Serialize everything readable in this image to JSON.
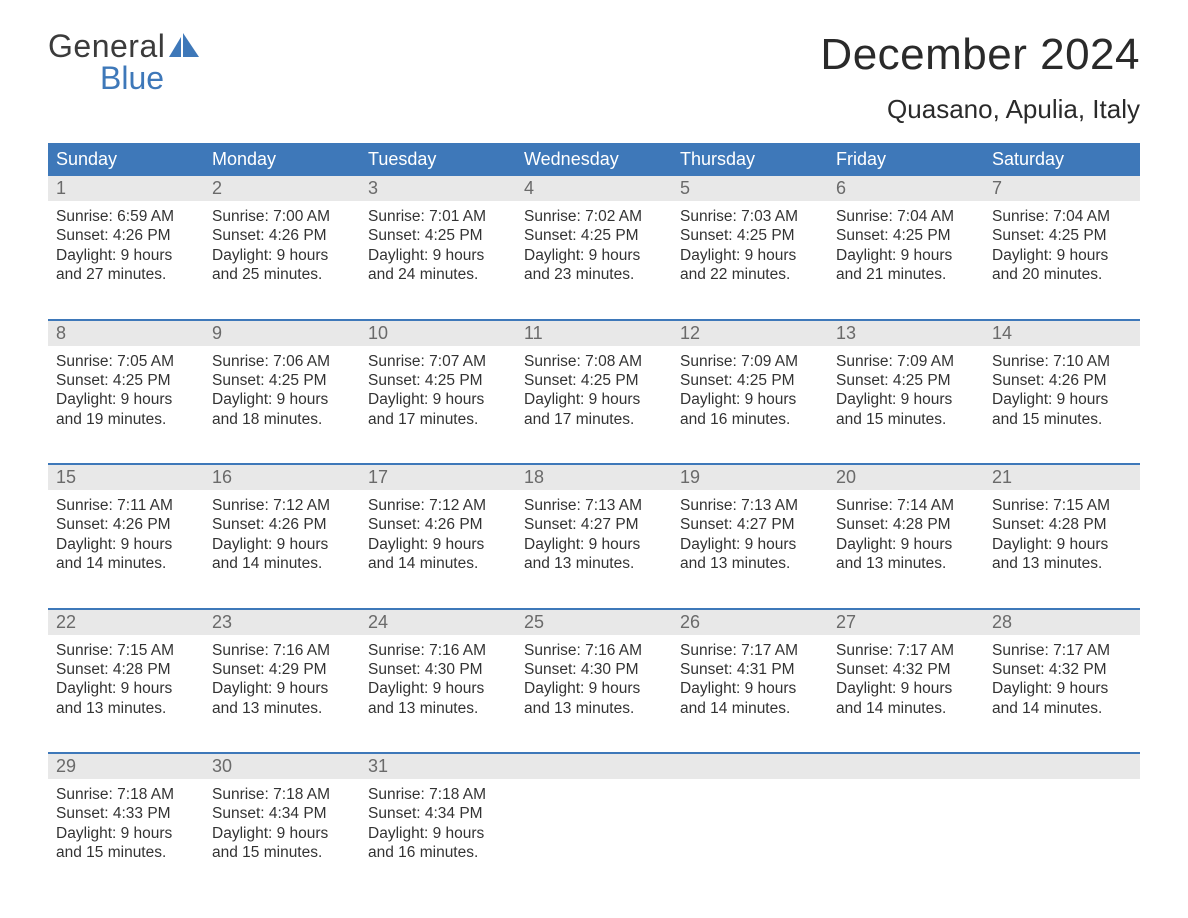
{
  "brand": {
    "line1": "General",
    "line2": "Blue"
  },
  "title": "December 2024",
  "subtitle": "Quasano, Apulia, Italy",
  "colors": {
    "header_bg": "#3e78b9",
    "header_text": "#ffffff",
    "daynum_bg": "#e8e8e8",
    "daynum_text": "#6a6a6a",
    "body_text": "#333333",
    "divider": "#3e78b9",
    "page_bg": "#ffffff",
    "logo_blue": "#3e78b9",
    "logo_dark": "#3b3b3b"
  },
  "weekdays": [
    "Sunday",
    "Monday",
    "Tuesday",
    "Wednesday",
    "Thursday",
    "Friday",
    "Saturday"
  ],
  "weeks": [
    [
      {
        "num": "1",
        "sunrise": "Sunrise: 6:59 AM",
        "sunset": "Sunset: 4:26 PM",
        "d1": "Daylight: 9 hours",
        "d2": "and 27 minutes."
      },
      {
        "num": "2",
        "sunrise": "Sunrise: 7:00 AM",
        "sunset": "Sunset: 4:26 PM",
        "d1": "Daylight: 9 hours",
        "d2": "and 25 minutes."
      },
      {
        "num": "3",
        "sunrise": "Sunrise: 7:01 AM",
        "sunset": "Sunset: 4:25 PM",
        "d1": "Daylight: 9 hours",
        "d2": "and 24 minutes."
      },
      {
        "num": "4",
        "sunrise": "Sunrise: 7:02 AM",
        "sunset": "Sunset: 4:25 PM",
        "d1": "Daylight: 9 hours",
        "d2": "and 23 minutes."
      },
      {
        "num": "5",
        "sunrise": "Sunrise: 7:03 AM",
        "sunset": "Sunset: 4:25 PM",
        "d1": "Daylight: 9 hours",
        "d2": "and 22 minutes."
      },
      {
        "num": "6",
        "sunrise": "Sunrise: 7:04 AM",
        "sunset": "Sunset: 4:25 PM",
        "d1": "Daylight: 9 hours",
        "d2": "and 21 minutes."
      },
      {
        "num": "7",
        "sunrise": "Sunrise: 7:04 AM",
        "sunset": "Sunset: 4:25 PM",
        "d1": "Daylight: 9 hours",
        "d2": "and 20 minutes."
      }
    ],
    [
      {
        "num": "8",
        "sunrise": "Sunrise: 7:05 AM",
        "sunset": "Sunset: 4:25 PM",
        "d1": "Daylight: 9 hours",
        "d2": "and 19 minutes."
      },
      {
        "num": "9",
        "sunrise": "Sunrise: 7:06 AM",
        "sunset": "Sunset: 4:25 PM",
        "d1": "Daylight: 9 hours",
        "d2": "and 18 minutes."
      },
      {
        "num": "10",
        "sunrise": "Sunrise: 7:07 AM",
        "sunset": "Sunset: 4:25 PM",
        "d1": "Daylight: 9 hours",
        "d2": "and 17 minutes."
      },
      {
        "num": "11",
        "sunrise": "Sunrise: 7:08 AM",
        "sunset": "Sunset: 4:25 PM",
        "d1": "Daylight: 9 hours",
        "d2": "and 17 minutes."
      },
      {
        "num": "12",
        "sunrise": "Sunrise: 7:09 AM",
        "sunset": "Sunset: 4:25 PM",
        "d1": "Daylight: 9 hours",
        "d2": "and 16 minutes."
      },
      {
        "num": "13",
        "sunrise": "Sunrise: 7:09 AM",
        "sunset": "Sunset: 4:25 PM",
        "d1": "Daylight: 9 hours",
        "d2": "and 15 minutes."
      },
      {
        "num": "14",
        "sunrise": "Sunrise: 7:10 AM",
        "sunset": "Sunset: 4:26 PM",
        "d1": "Daylight: 9 hours",
        "d2": "and 15 minutes."
      }
    ],
    [
      {
        "num": "15",
        "sunrise": "Sunrise: 7:11 AM",
        "sunset": "Sunset: 4:26 PM",
        "d1": "Daylight: 9 hours",
        "d2": "and 14 minutes."
      },
      {
        "num": "16",
        "sunrise": "Sunrise: 7:12 AM",
        "sunset": "Sunset: 4:26 PM",
        "d1": "Daylight: 9 hours",
        "d2": "and 14 minutes."
      },
      {
        "num": "17",
        "sunrise": "Sunrise: 7:12 AM",
        "sunset": "Sunset: 4:26 PM",
        "d1": "Daylight: 9 hours",
        "d2": "and 14 minutes."
      },
      {
        "num": "18",
        "sunrise": "Sunrise: 7:13 AM",
        "sunset": "Sunset: 4:27 PM",
        "d1": "Daylight: 9 hours",
        "d2": "and 13 minutes."
      },
      {
        "num": "19",
        "sunrise": "Sunrise: 7:13 AM",
        "sunset": "Sunset: 4:27 PM",
        "d1": "Daylight: 9 hours",
        "d2": "and 13 minutes."
      },
      {
        "num": "20",
        "sunrise": "Sunrise: 7:14 AM",
        "sunset": "Sunset: 4:28 PM",
        "d1": "Daylight: 9 hours",
        "d2": "and 13 minutes."
      },
      {
        "num": "21",
        "sunrise": "Sunrise: 7:15 AM",
        "sunset": "Sunset: 4:28 PM",
        "d1": "Daylight: 9 hours",
        "d2": "and 13 minutes."
      }
    ],
    [
      {
        "num": "22",
        "sunrise": "Sunrise: 7:15 AM",
        "sunset": "Sunset: 4:28 PM",
        "d1": "Daylight: 9 hours",
        "d2": "and 13 minutes."
      },
      {
        "num": "23",
        "sunrise": "Sunrise: 7:16 AM",
        "sunset": "Sunset: 4:29 PM",
        "d1": "Daylight: 9 hours",
        "d2": "and 13 minutes."
      },
      {
        "num": "24",
        "sunrise": "Sunrise: 7:16 AM",
        "sunset": "Sunset: 4:30 PM",
        "d1": "Daylight: 9 hours",
        "d2": "and 13 minutes."
      },
      {
        "num": "25",
        "sunrise": "Sunrise: 7:16 AM",
        "sunset": "Sunset: 4:30 PM",
        "d1": "Daylight: 9 hours",
        "d2": "and 13 minutes."
      },
      {
        "num": "26",
        "sunrise": "Sunrise: 7:17 AM",
        "sunset": "Sunset: 4:31 PM",
        "d1": "Daylight: 9 hours",
        "d2": "and 14 minutes."
      },
      {
        "num": "27",
        "sunrise": "Sunrise: 7:17 AM",
        "sunset": "Sunset: 4:32 PM",
        "d1": "Daylight: 9 hours",
        "d2": "and 14 minutes."
      },
      {
        "num": "28",
        "sunrise": "Sunrise: 7:17 AM",
        "sunset": "Sunset: 4:32 PM",
        "d1": "Daylight: 9 hours",
        "d2": "and 14 minutes."
      }
    ],
    [
      {
        "num": "29",
        "sunrise": "Sunrise: 7:18 AM",
        "sunset": "Sunset: 4:33 PM",
        "d1": "Daylight: 9 hours",
        "d2": "and 15 minutes."
      },
      {
        "num": "30",
        "sunrise": "Sunrise: 7:18 AM",
        "sunset": "Sunset: 4:34 PM",
        "d1": "Daylight: 9 hours",
        "d2": "and 15 minutes."
      },
      {
        "num": "31",
        "sunrise": "Sunrise: 7:18 AM",
        "sunset": "Sunset: 4:34 PM",
        "d1": "Daylight: 9 hours",
        "d2": "and 16 minutes."
      },
      null,
      null,
      null,
      null
    ]
  ]
}
